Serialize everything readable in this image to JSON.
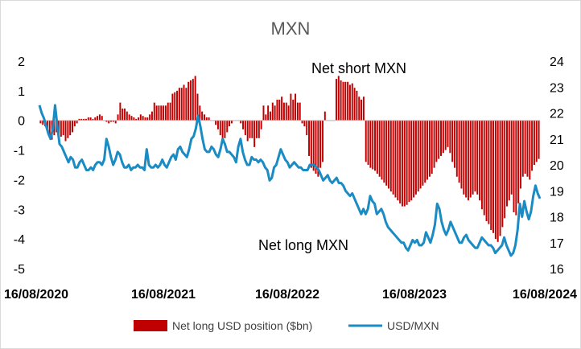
{
  "chart_data": {
    "type": "bar+line",
    "title": "MXN",
    "annotations": [
      "Net short MXN",
      "Net long MXN"
    ],
    "x_tick_labels": [
      "16/08/2020",
      "16/08/2021",
      "16/08/2022",
      "16/08/2023",
      "16/08/2024"
    ],
    "y_left": {
      "ticks": [
        2,
        1,
        0,
        -1,
        -2,
        -3,
        -4,
        -5
      ],
      "ylim": [
        -5,
        2
      ]
    },
    "y_right": {
      "ticks": [
        24,
        23,
        22,
        21,
        20,
        19,
        18,
        17,
        16
      ],
      "ylim": [
        16,
        24
      ]
    },
    "grid": false,
    "legend_position": "bottom",
    "series": [
      {
        "name": "Net long USD position ($bn)",
        "type": "bar",
        "axis": "left",
        "color": "#c00000",
        "values": [
          -0.1,
          -0.15,
          -0.2,
          -0.3,
          -0.55,
          -0.65,
          -0.5,
          -0.4,
          -0.6,
          -0.55,
          -0.5,
          -0.7,
          -0.6,
          -0.5,
          -0.4,
          -0.2,
          -0.1,
          0.05,
          0.05,
          0.05,
          0.05,
          0.1,
          0.1,
          0.05,
          0.1,
          0.15,
          0.2,
          0.15,
          0.0,
          -0.05,
          -0.1,
          -0.05,
          -0.05,
          -0.1,
          0.2,
          0.6,
          0.4,
          0.4,
          0.3,
          0.2,
          0.15,
          0.1,
          0.05,
          0.1,
          0.2,
          0.15,
          0.1,
          0.1,
          0.2,
          0.3,
          0.6,
          0.5,
          0.5,
          0.5,
          0.5,
          0.5,
          0.6,
          0.6,
          0.9,
          0.95,
          1.0,
          1.1,
          1.1,
          1.2,
          1.1,
          1.3,
          1.35,
          1.4,
          1.5,
          0.9,
          0.5,
          0.3,
          0.2,
          0.1,
          0.1,
          0.0,
          0.0,
          -0.15,
          -0.3,
          -0.5,
          -0.7,
          -0.6,
          -0.4,
          -0.2,
          -0.1,
          0.0,
          0.0,
          0.0,
          -0.1,
          -0.3,
          -0.5,
          -0.7,
          -0.6,
          -0.6,
          -0.9,
          -0.6,
          -0.6,
          -0.3,
          0.5,
          0.2,
          0.5,
          0.3,
          0.6,
          0.5,
          0.7,
          0.7,
          0.8,
          0.6,
          0.6,
          0.5,
          0.9,
          0.7,
          0.9,
          0.6,
          0.6,
          -0.1,
          -0.2,
          -0.5,
          -1.2,
          -1.6,
          -1.7,
          -1.8,
          -1.9,
          -1.6,
          -1.4,
          0.3,
          0.0,
          0.0,
          0.0,
          0.0,
          1.4,
          1.5,
          1.35,
          1.3,
          1.3,
          1.3,
          1.2,
          1.25,
          1.1,
          1.0,
          0.8,
          0.7,
          0.8,
          -1.4,
          -1.5,
          -1.6,
          -1.65,
          -1.7,
          -1.8,
          -1.9,
          -2.0,
          -2.1,
          -2.2,
          -2.3,
          -2.4,
          -2.5,
          -2.6,
          -2.7,
          -2.8,
          -2.9,
          -2.9,
          -2.85,
          -2.75,
          -2.7,
          -2.6,
          -2.5,
          -2.4,
          -2.3,
          -2.2,
          -2.1,
          -2.0,
          -1.9,
          -1.8,
          -1.6,
          -1.4,
          -1.3,
          -1.2,
          -1.1,
          -1.0,
          -0.9,
          -1.1,
          -1.4,
          -1.6,
          -1.9,
          -2.1,
          -2.3,
          -2.5,
          -2.6,
          -2.7,
          -2.6,
          -2.5,
          -2.4,
          -2.5,
          -2.7,
          -3.0,
          -3.2,
          -3.4,
          -3.5,
          -3.7,
          -3.8,
          -4.0,
          -4.1,
          -3.9,
          -3.6,
          -3.3,
          -2.9,
          -2.7,
          -2.5,
          -3.1,
          -3.2,
          -2.8,
          -2.3,
          -1.9,
          -1.8,
          -1.9,
          -2.0,
          -1.7,
          -1.5,
          -1.4,
          -1.3
        ]
      },
      {
        "name": "USD/MXN",
        "type": "line",
        "axis": "right",
        "color": "#1b8bc4",
        "values": [
          22.3,
          22.0,
          21.8,
          21.5,
          21.2,
          21.0,
          21.4,
          22.3,
          21.5,
          20.8,
          20.7,
          20.5,
          20.3,
          20.1,
          20.3,
          20.2,
          19.9,
          19.9,
          20.1,
          20.2,
          20.0,
          19.8,
          19.8,
          19.9,
          19.8,
          20.0,
          20.1,
          20.1,
          20.0,
          20.2,
          21.0,
          20.7,
          20.3,
          20.0,
          20.2,
          20.5,
          20.4,
          20.1,
          19.9,
          19.9,
          20.0,
          19.8,
          19.9,
          19.9,
          20.0,
          19.9,
          19.9,
          19.8,
          20.6,
          20.0,
          19.9,
          19.9,
          20.0,
          19.9,
          20.0,
          20.2,
          20.0,
          19.9,
          20.1,
          20.3,
          20.4,
          20.2,
          20.6,
          20.7,
          20.5,
          20.4,
          20.3,
          20.6,
          21.0,
          21.1,
          21.4,
          21.9,
          21.5,
          21.0,
          20.6,
          20.5,
          20.5,
          20.7,
          20.6,
          20.4,
          20.3,
          20.6,
          21.0,
          20.8,
          20.5,
          20.5,
          20.4,
          20.3,
          20.1,
          20.7,
          21.0,
          20.5,
          20.2,
          20.0,
          20.0,
          20.3,
          20.2,
          20.2,
          20.1,
          20.2,
          20.1,
          19.9,
          19.8,
          19.4,
          19.5,
          19.9,
          20.0,
          20.3,
          20.6,
          20.4,
          20.2,
          20.1,
          19.9,
          20.0,
          20.1,
          20.0,
          19.9,
          19.9,
          19.8,
          19.8,
          19.8,
          20.0,
          20.0,
          20.0,
          19.9,
          19.8,
          19.6,
          19.4,
          19.5,
          19.6,
          19.4,
          19.3,
          19.4,
          19.5,
          19.3,
          19.3,
          19.2,
          19.0,
          18.9,
          18.8,
          18.9,
          18.7,
          18.5,
          18.3,
          18.1,
          18.3,
          18.1,
          18.3,
          18.8,
          18.6,
          18.5,
          18.1,
          18.2,
          18.3,
          18.1,
          17.8,
          17.6,
          17.5,
          17.4,
          17.3,
          17.2,
          17.1,
          17.0,
          17.0,
          16.8,
          16.7,
          16.9,
          17.1,
          17.0,
          17.1,
          16.9,
          16.9,
          17.0,
          17.4,
          17.2,
          17.0,
          17.3,
          17.7,
          18.5,
          18.3,
          17.8,
          17.5,
          17.3,
          17.5,
          17.8,
          17.6,
          17.4,
          17.2,
          17.0,
          17.0,
          17.2,
          17.3,
          17.1,
          17.0,
          16.9,
          16.8,
          16.8,
          17.0,
          17.2,
          17.1,
          17.0,
          16.9,
          16.9,
          16.8,
          16.6,
          16.7,
          16.8,
          16.9,
          17.2,
          16.9,
          16.7,
          16.5,
          16.6,
          16.9,
          17.5,
          18.5,
          18.0,
          18.6,
          18.2,
          17.9,
          18.2,
          18.8,
          19.2,
          18.9,
          18.7
        ]
      }
    ]
  }
}
